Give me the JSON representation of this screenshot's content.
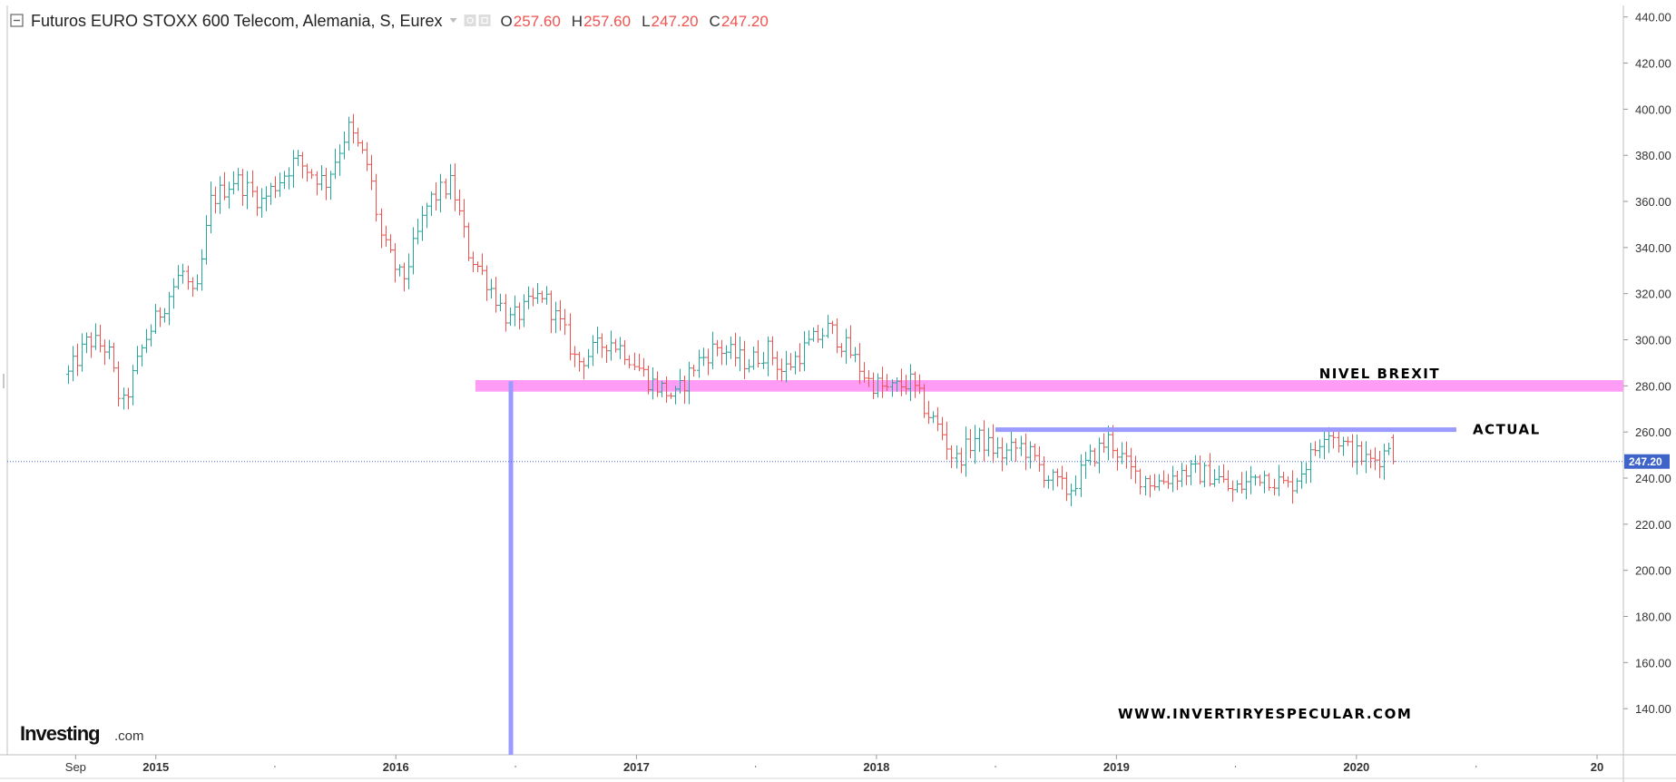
{
  "header": {
    "title": "Futuros EURO STOXX 600 Telecom, Alemania, S, Eurex",
    "ohlc": [
      {
        "key": "O",
        "value": "257.60"
      },
      {
        "key": "H",
        "value": "257.60"
      },
      {
        "key": "L",
        "value": "247.20"
      },
      {
        "key": "C",
        "value": "247.20"
      }
    ]
  },
  "logo": {
    "main": "Investing",
    "suffix": ".com"
  },
  "watermark": "WWW.INVERTIRYESPECULAR.COM",
  "colors": {
    "up": "#26a69a",
    "down": "#ef5350",
    "brexit_band": "#ff9cf5",
    "level_line": "#9a9aff",
    "price_tag": "#3f64c9",
    "current_line": "#4a6fd6"
  },
  "chart_data": {
    "type": "ohlc",
    "interval": "weekly",
    "ylim": [
      120,
      445
    ],
    "yticks": [
      140,
      160,
      180,
      200,
      220,
      240,
      260,
      280,
      300,
      320,
      340,
      360,
      380,
      400,
      420,
      440
    ],
    "x_range": [
      "2014-05-20",
      "2021-02-10"
    ],
    "x_labels": [
      {
        "date": "2014-09-01",
        "label": "Sep",
        "year": false
      },
      {
        "date": "2015-01-01",
        "label": "2015",
        "year": true
      },
      {
        "date": "2016-01-01",
        "label": "2016",
        "year": true
      },
      {
        "date": "2017-01-01",
        "label": "2017",
        "year": true
      },
      {
        "date": "2018-01-01",
        "label": "2018",
        "year": true
      },
      {
        "date": "2019-01-01",
        "label": "2019",
        "year": true
      },
      {
        "date": "2020-01-01",
        "label": "2020",
        "year": true
      },
      {
        "date": "2021-01-01",
        "label": "20",
        "year": true
      }
    ],
    "last_price": 247.2,
    "last_price_label": "247.20",
    "anchors": [
      {
        "date": "2014-08-20",
        "value": 285
      },
      {
        "date": "2014-09-20",
        "value": 300
      },
      {
        "date": "2014-10-20",
        "value": 296
      },
      {
        "date": "2014-11-10",
        "value": 270
      },
      {
        "date": "2014-12-15",
        "value": 300
      },
      {
        "date": "2015-02-10",
        "value": 330
      },
      {
        "date": "2015-03-01",
        "value": 315
      },
      {
        "date": "2015-03-25",
        "value": 360
      },
      {
        "date": "2015-05-01",
        "value": 370
      },
      {
        "date": "2015-06-10",
        "value": 360
      },
      {
        "date": "2015-08-01",
        "value": 378
      },
      {
        "date": "2015-09-15",
        "value": 368
      },
      {
        "date": "2015-10-20",
        "value": 392
      },
      {
        "date": "2015-11-20",
        "value": 375
      },
      {
        "date": "2015-12-10",
        "value": 343
      },
      {
        "date": "2016-01-10",
        "value": 325
      },
      {
        "date": "2016-02-20",
        "value": 360
      },
      {
        "date": "2016-03-25",
        "value": 368
      },
      {
        "date": "2016-04-20",
        "value": 338
      },
      {
        "date": "2016-05-20",
        "value": 325
      },
      {
        "date": "2016-06-20",
        "value": 308
      },
      {
        "date": "2016-07-10",
        "value": 312
      },
      {
        "date": "2016-08-10",
        "value": 320
      },
      {
        "date": "2016-09-10",
        "value": 305
      },
      {
        "date": "2016-10-01",
        "value": 290
      },
      {
        "date": "2016-11-20",
        "value": 300
      },
      {
        "date": "2016-12-15",
        "value": 295
      },
      {
        "date": "2017-01-20",
        "value": 282
      },
      {
        "date": "2017-03-01",
        "value": 275
      },
      {
        "date": "2017-04-01",
        "value": 290
      },
      {
        "date": "2017-05-01",
        "value": 297
      },
      {
        "date": "2017-06-20",
        "value": 290
      },
      {
        "date": "2017-07-20",
        "value": 296
      },
      {
        "date": "2017-08-10",
        "value": 286
      },
      {
        "date": "2017-09-20",
        "value": 298
      },
      {
        "date": "2017-10-20",
        "value": 305
      },
      {
        "date": "2017-11-20",
        "value": 295
      },
      {
        "date": "2017-12-20",
        "value": 282
      },
      {
        "date": "2018-01-20",
        "value": 278
      },
      {
        "date": "2018-02-20",
        "value": 282
      },
      {
        "date": "2018-03-20",
        "value": 268
      },
      {
        "date": "2018-04-10",
        "value": 260
      },
      {
        "date": "2018-04-30",
        "value": 247
      },
      {
        "date": "2018-06-01",
        "value": 258
      },
      {
        "date": "2018-07-10",
        "value": 250
      },
      {
        "date": "2018-08-10",
        "value": 254
      },
      {
        "date": "2018-09-20",
        "value": 240
      },
      {
        "date": "2018-10-20",
        "value": 234
      },
      {
        "date": "2018-11-20",
        "value": 248
      },
      {
        "date": "2018-12-20",
        "value": 257
      },
      {
        "date": "2019-01-25",
        "value": 242
      },
      {
        "date": "2019-03-01",
        "value": 238
      },
      {
        "date": "2019-04-15",
        "value": 243
      },
      {
        "date": "2019-06-01",
        "value": 241
      },
      {
        "date": "2019-06-25",
        "value": 234
      },
      {
        "date": "2019-08-10",
        "value": 242
      },
      {
        "date": "2019-09-20",
        "value": 236
      },
      {
        "date": "2019-10-25",
        "value": 250
      },
      {
        "date": "2019-11-15",
        "value": 262
      },
      {
        "date": "2019-12-20",
        "value": 252
      },
      {
        "date": "2020-01-20",
        "value": 247
      },
      {
        "date": "2020-02-10",
        "value": 250
      },
      {
        "date": "2020-02-25",
        "value": 258
      },
      {
        "date": "2020-03-02",
        "value": 247
      }
    ],
    "annotations": [
      {
        "type": "band",
        "label": "NIVEL BREXIT",
        "y": [
          277.5,
          282.5
        ],
        "x": [
          "2016-05-01",
          "2021-02-10"
        ],
        "color": "#ff9cf5"
      },
      {
        "type": "hline",
        "label": "ACTUAL",
        "y": 261,
        "x": [
          "2018-07-01",
          "2020-06-01"
        ],
        "color": "#9a9aff"
      },
      {
        "type": "vline",
        "x": "2016-06-24",
        "y": [
          120,
          282
        ],
        "color": "#9a9aff"
      }
    ]
  }
}
